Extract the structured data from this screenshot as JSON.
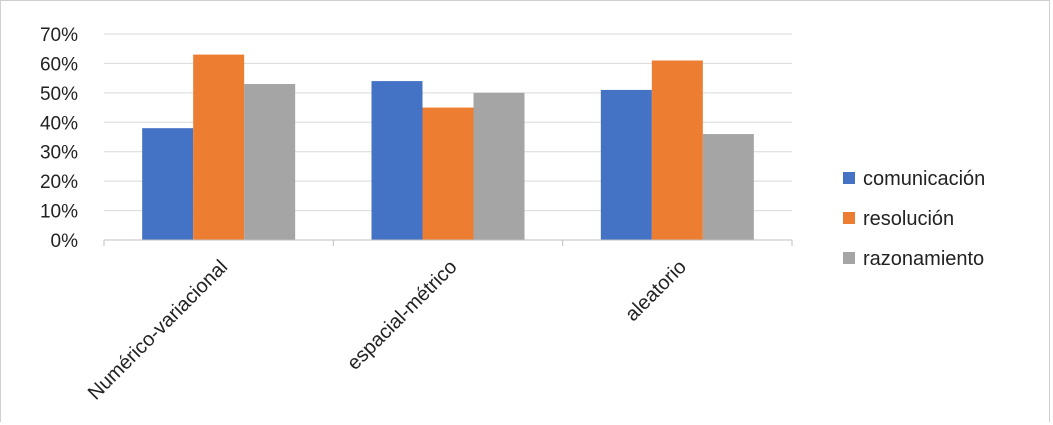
{
  "chart_data": {
    "type": "bar",
    "categories": [
      "Numérico-variacional",
      "espacial-métrico",
      "aleatorio"
    ],
    "series": [
      {
        "name": "comunicación",
        "values": [
          38,
          54,
          51
        ],
        "color": "#4472c4"
      },
      {
        "name": "resolución",
        "values": [
          63,
          45,
          61
        ],
        "color": "#ed7d31"
      },
      {
        "name": "razonamiento",
        "values": [
          53,
          50,
          36
        ],
        "color": "#a5a5a5"
      }
    ],
    "y_ticks": [
      "0%",
      "10%",
      "20%",
      "30%",
      "40%",
      "50%",
      "60%",
      "70%"
    ],
    "ylim": [
      0,
      70
    ],
    "grid": true,
    "legend_position": "right",
    "title": "",
    "xlabel": "",
    "ylabel": ""
  }
}
